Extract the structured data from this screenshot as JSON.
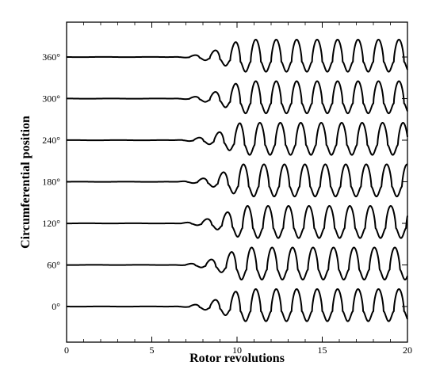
{
  "chart_data": {
    "type": "line",
    "title": "",
    "xlabel": "Rotor revolutions",
    "ylabel": "Circumferential position",
    "xlim": [
      0,
      20
    ],
    "x_ticks": [
      "0",
      "5",
      "10",
      "15",
      "20"
    ],
    "y_ticks": [
      "0°",
      "60°",
      "120°",
      "180°",
      "240°",
      "300°",
      "360°"
    ],
    "grid": false,
    "legend": "none",
    "line_color": "#000000",
    "description_of_traces": "seven stacked probe traces at circumferential offsets; flat until ~6 rev, growing oscillation, saturated periodic spikes from ~10 rev",
    "series": [
      {
        "offset": "0°",
        "onset_revs": 6.0,
        "period_revs": 1.2,
        "phase": 0.0
      },
      {
        "offset": "60°",
        "onset_revs": 6.0,
        "period_revs": 1.2,
        "phase": 0.2
      },
      {
        "offset": "120°",
        "onset_revs": 6.0,
        "period_revs": 1.2,
        "phase": 0.4
      },
      {
        "offset": "180°",
        "onset_revs": 6.0,
        "period_revs": 1.2,
        "phase": 0.6
      },
      {
        "offset": "240°",
        "onset_revs": 6.0,
        "period_revs": 1.2,
        "phase": 0.8
      },
      {
        "offset": "300°",
        "onset_revs": 6.0,
        "period_revs": 1.2,
        "phase": 1.0
      },
      {
        "offset": "360°",
        "onset_revs": 6.0,
        "period_revs": 1.2,
        "phase": 0.0
      }
    ]
  }
}
